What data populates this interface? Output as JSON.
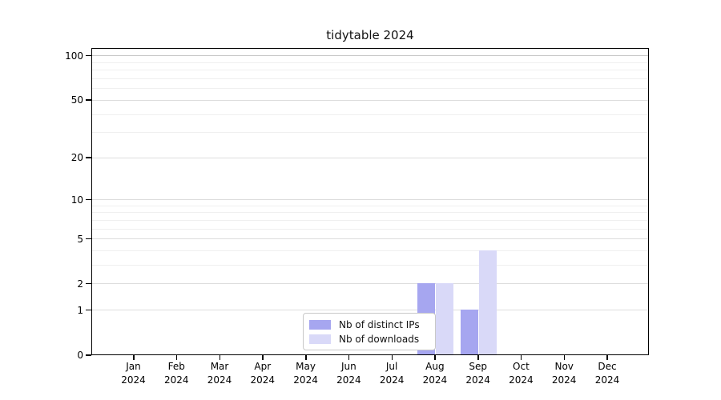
{
  "title": "tidytable 2024",
  "chart_data": {
    "type": "bar",
    "title": "tidytable 2024",
    "categories": [
      "Jan 2024",
      "Feb 2024",
      "Mar 2024",
      "Apr 2024",
      "May 2024",
      "Jun 2024",
      "Jul 2024",
      "Aug 2024",
      "Sep 2024",
      "Oct 2024",
      "Nov 2024",
      "Dec 2024"
    ],
    "series": [
      {
        "name": "Nb of distinct IPs",
        "color": "#a6a6f0",
        "values": [
          0,
          0,
          0,
          0,
          0,
          0,
          0,
          2,
          1,
          0,
          0,
          0
        ]
      },
      {
        "name": "Nb of downloads",
        "color": "#d9d9f8",
        "values": [
          0,
          0,
          0,
          0,
          0,
          0,
          0,
          2,
          4,
          0,
          0,
          0
        ]
      }
    ],
    "xlabel": "",
    "ylabel": "",
    "yscale": "log1p",
    "ylim": [
      0,
      113
    ],
    "y_major_ticks": [
      0,
      1,
      2,
      5,
      10,
      20,
      50,
      100
    ],
    "y_minor_gridlines": [
      3,
      4,
      6,
      7,
      8,
      9,
      30,
      40,
      60,
      70,
      80,
      90
    ],
    "grid": "horizontal",
    "legend_position": "bottom-center",
    "colors": {
      "axis": "#000000",
      "major_grid": "#dddddd",
      "minor_grid": "#efefef",
      "top_grid": "#c8c8c8",
      "legend_border": "#c8c8c8",
      "legend_bg": "#ffffff"
    }
  }
}
